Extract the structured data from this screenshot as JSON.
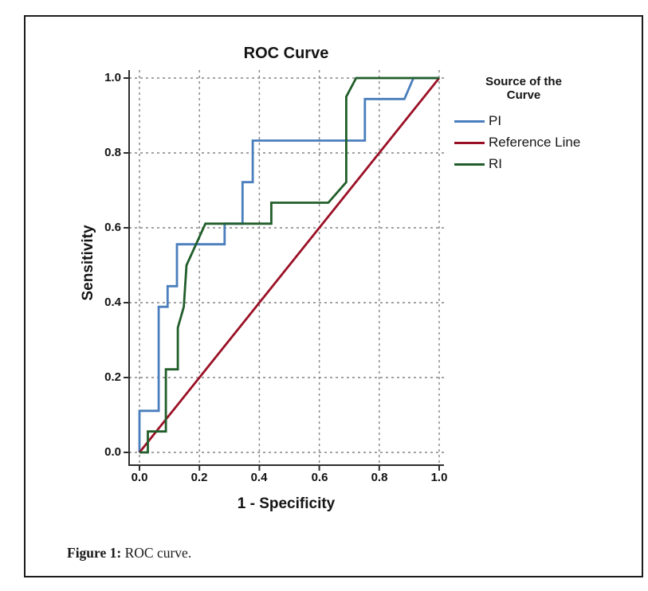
{
  "figure": {
    "caption_label": "Figure 1:",
    "caption_text": " ROC curve."
  },
  "chart_data": {
    "type": "line",
    "title": "ROC Curve",
    "xlabel": "1 - Specificity",
    "ylabel": "Sensitivity",
    "xlim": [
      0.0,
      1.0
    ],
    "ylim": [
      0.0,
      1.0
    ],
    "grid": "dashed",
    "x_ticks": [
      0.0,
      0.2,
      0.4,
      0.6,
      0.8,
      1.0
    ],
    "y_ticks": [
      0.0,
      0.2,
      0.4,
      0.6,
      0.8,
      1.0
    ],
    "x_tick_labels": [
      "0.0",
      "0.2",
      "0.4",
      "0.6",
      "0.8",
      "1.0"
    ],
    "y_tick_labels": [
      "1.0",
      "0.8",
      "0.6",
      "0.4",
      "0.2",
      "0.0"
    ],
    "legend": {
      "title": "Source of the Curve",
      "position": "right"
    },
    "series": [
      {
        "name": "PI",
        "color": "#4a7ebc",
        "points": [
          [
            0,
            0
          ],
          [
            0,
            0.111
          ],
          [
            0.064,
            0.111
          ],
          [
            0.064,
            0.389
          ],
          [
            0.094,
            0.389
          ],
          [
            0.094,
            0.444
          ],
          [
            0.125,
            0.444
          ],
          [
            0.125,
            0.556
          ],
          [
            0.284,
            0.556
          ],
          [
            0.284,
            0.611
          ],
          [
            0.344,
            0.611
          ],
          [
            0.344,
            0.722
          ],
          [
            0.378,
            0.722
          ],
          [
            0.378,
            0.833
          ],
          [
            0.752,
            0.833
          ],
          [
            0.752,
            0.944
          ],
          [
            0.884,
            0.944
          ],
          [
            0.914,
            1.0
          ],
          [
            1.0,
            1.0
          ]
        ]
      },
      {
        "name": "Reference Line",
        "color": "#9a1125",
        "points": [
          [
            0,
            0
          ],
          [
            1.0,
            1.0
          ]
        ]
      },
      {
        "name": "RI",
        "color": "#215e2b",
        "points": [
          [
            0,
            0
          ],
          [
            0.028,
            0
          ],
          [
            0.028,
            0.056
          ],
          [
            0.088,
            0.056
          ],
          [
            0.088,
            0.222
          ],
          [
            0.128,
            0.222
          ],
          [
            0.128,
            0.333
          ],
          [
            0.148,
            0.389
          ],
          [
            0.157,
            0.5
          ],
          [
            0.22,
            0.611
          ],
          [
            0.44,
            0.611
          ],
          [
            0.44,
            0.667
          ],
          [
            0.63,
            0.667
          ],
          [
            0.69,
            0.722
          ],
          [
            0.69,
            0.95
          ],
          [
            0.723,
            1.0
          ],
          [
            1.0,
            1.0
          ]
        ]
      }
    ],
    "style": {
      "grid_color": "#848484",
      "axis_color": "#2d2d2d",
      "line_width": 2.8
    }
  }
}
